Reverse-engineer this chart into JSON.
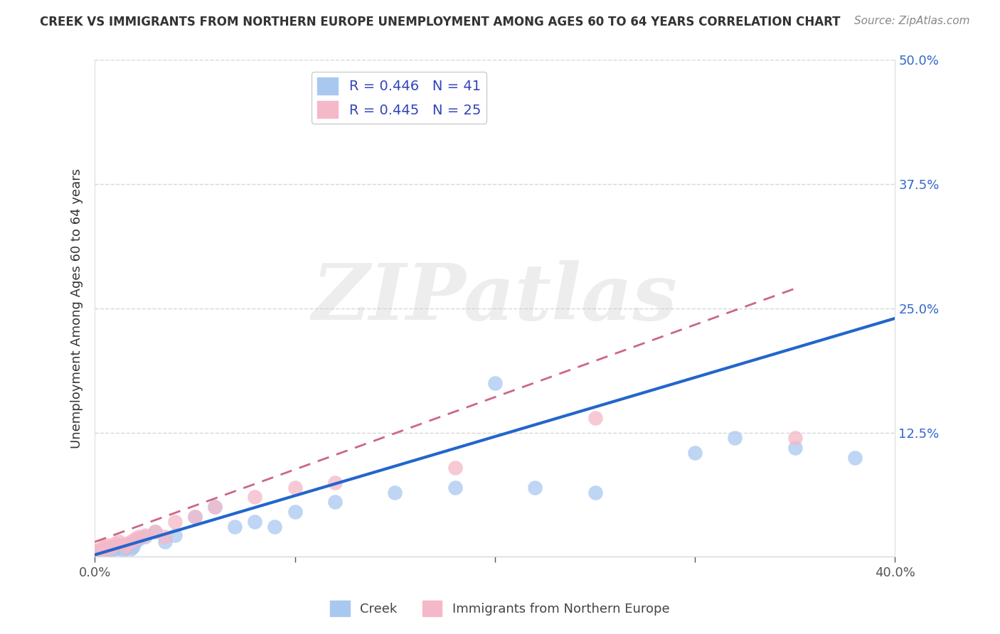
{
  "title": "CREEK VS IMMIGRANTS FROM NORTHERN EUROPE UNEMPLOYMENT AMONG AGES 60 TO 64 YEARS CORRELATION CHART",
  "source": "Source: ZipAtlas.com",
  "ylabel": "Unemployment Among Ages 60 to 64 years",
  "xlim": [
    0.0,
    0.4
  ],
  "ylim": [
    0.0,
    0.5
  ],
  "xticks": [
    0.0,
    0.1,
    0.2,
    0.3,
    0.4
  ],
  "yticks": [
    0.0,
    0.125,
    0.25,
    0.375,
    0.5
  ],
  "xticklabels": [
    "0.0%",
    "",
    "",
    "",
    "40.0%"
  ],
  "yticklabels_right": [
    "",
    "12.5%",
    "25.0%",
    "37.5%",
    "50.0%"
  ],
  "creek_R": 0.446,
  "creek_N": 41,
  "imm_R": 0.445,
  "imm_N": 25,
  "creek_color": "#a8c8f0",
  "imm_color": "#f5b8c8",
  "creek_line_color": "#2266cc",
  "imm_line_color": "#cc6688",
  "watermark": "ZIPatlas",
  "creek_legend": "Creek",
  "imm_legend": "Immigrants from Northern Europe",
  "creek_line_x": [
    0.0,
    0.4
  ],
  "creek_line_y": [
    0.002,
    0.24
  ],
  "imm_line_x": [
    0.0,
    0.35
  ],
  "imm_line_y": [
    0.015,
    0.27
  ],
  "creek_x": [
    0.001,
    0.002,
    0.003,
    0.004,
    0.005,
    0.006,
    0.007,
    0.008,
    0.009,
    0.01,
    0.011,
    0.012,
    0.013,
    0.014,
    0.015,
    0.016,
    0.017,
    0.018,
    0.019,
    0.02,
    0.022,
    0.025,
    0.03,
    0.035,
    0.04,
    0.05,
    0.06,
    0.07,
    0.08,
    0.09,
    0.1,
    0.12,
    0.15,
    0.18,
    0.2,
    0.22,
    0.25,
    0.3,
    0.32,
    0.35,
    0.38
  ],
  "creek_y": [
    0.005,
    0.003,
    0.006,
    0.004,
    0.007,
    0.005,
    0.008,
    0.006,
    0.01,
    0.008,
    0.009,
    0.01,
    0.012,
    0.007,
    0.009,
    0.011,
    0.013,
    0.008,
    0.01,
    0.015,
    0.018,
    0.02,
    0.025,
    0.015,
    0.022,
    0.04,
    0.05,
    0.03,
    0.035,
    0.03,
    0.045,
    0.055,
    0.065,
    0.07,
    0.175,
    0.07,
    0.065,
    0.105,
    0.12,
    0.11,
    0.1
  ],
  "imm_x": [
    0.001,
    0.002,
    0.004,
    0.005,
    0.006,
    0.008,
    0.01,
    0.012,
    0.015,
    0.016,
    0.018,
    0.02,
    0.022,
    0.025,
    0.03,
    0.035,
    0.04,
    0.05,
    0.06,
    0.08,
    0.1,
    0.12,
    0.18,
    0.25,
    0.35
  ],
  "imm_y": [
    0.007,
    0.005,
    0.01,
    0.008,
    0.012,
    0.009,
    0.013,
    0.015,
    0.01,
    0.013,
    0.015,
    0.018,
    0.02,
    0.022,
    0.025,
    0.02,
    0.035,
    0.04,
    0.05,
    0.06,
    0.07,
    0.075,
    0.09,
    0.14,
    0.12
  ]
}
